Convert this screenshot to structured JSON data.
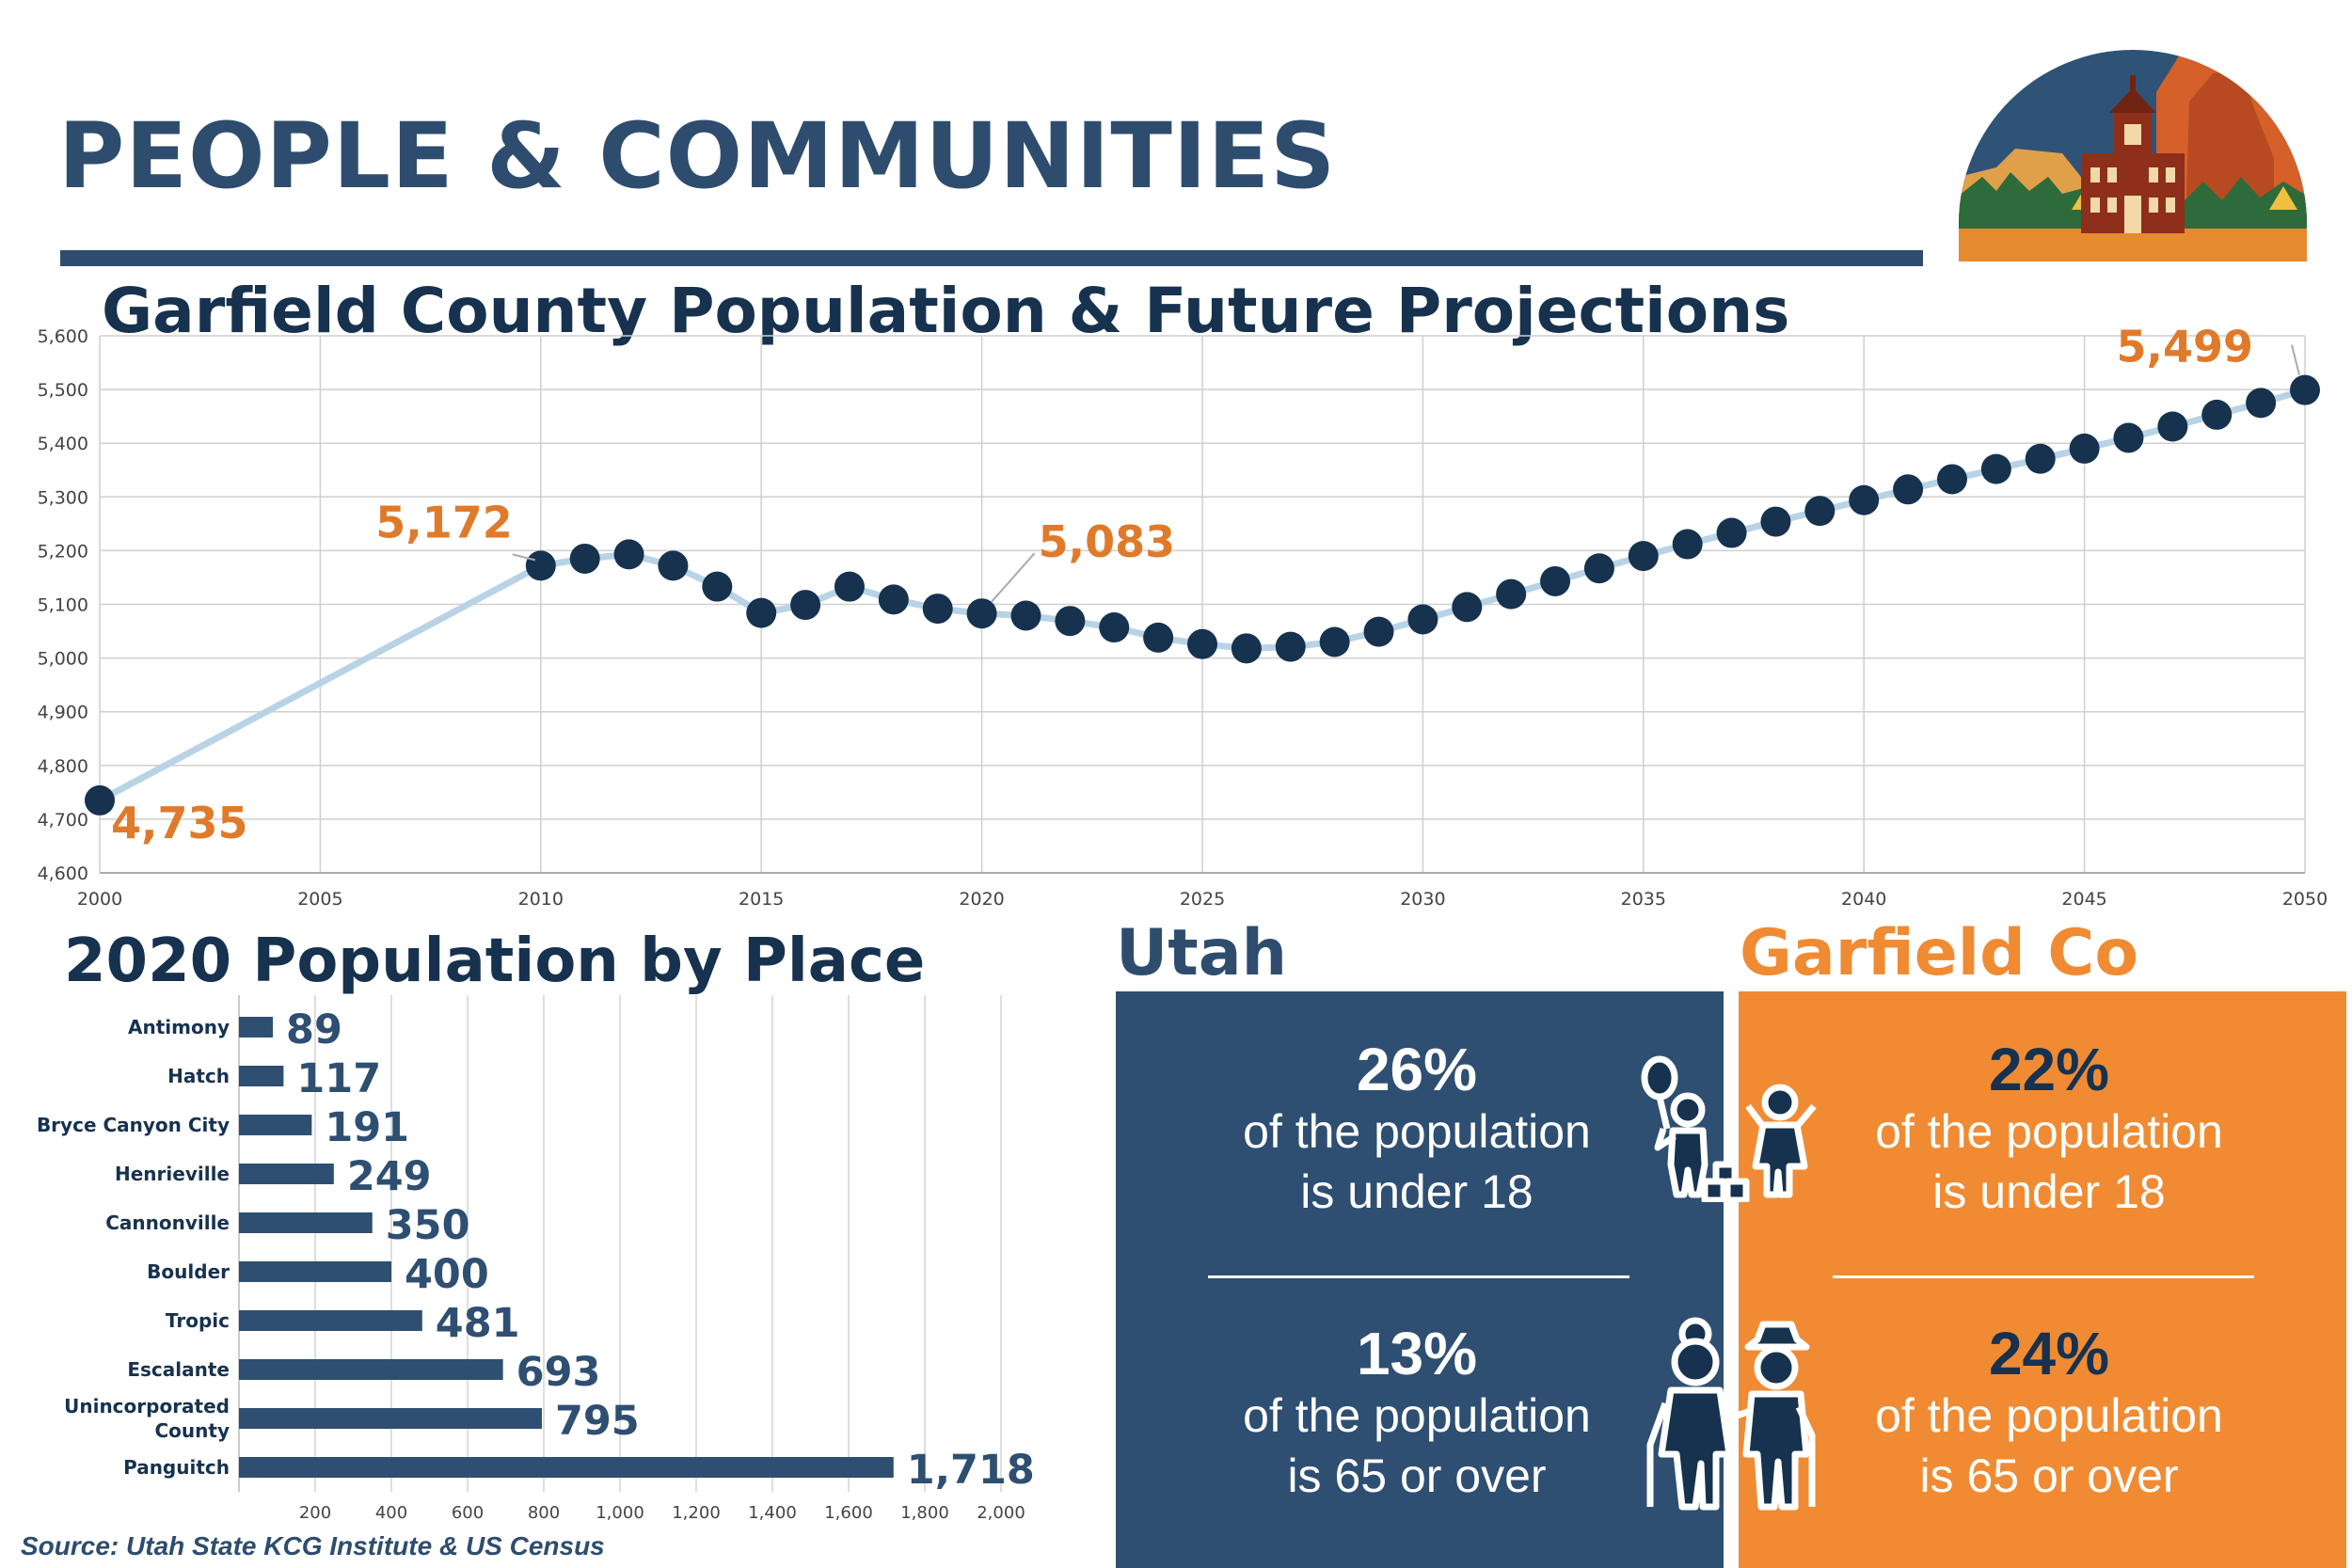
{
  "header": {
    "title": "PEOPLE & COMMUNITIES"
  },
  "colors": {
    "navy": "#16324f",
    "slate": "#2e4f72",
    "orange": "#f08b33",
    "label_orange": "#e07a2b",
    "line": "#b9d3e6"
  },
  "icons": {
    "logo": "courthouse-and-red-cliffs-illustration",
    "children": "children-playing-icon",
    "seniors": "elderly-couple-icon"
  },
  "chart_data": [
    {
      "type": "line",
      "title": "Garfield County Population & Future Projections",
      "xlim": [
        2000,
        2050
      ],
      "ylim": [
        4600,
        5600
      ],
      "x_ticks": [
        "2000",
        "2005",
        "2010",
        "2015",
        "2020",
        "2025",
        "2030",
        "2035",
        "2040",
        "2045",
        "2050"
      ],
      "y_ticks": [
        "4,600",
        "4,700",
        "4,800",
        "4,900",
        "5,000",
        "5,100",
        "5,200",
        "5,300",
        "5,400",
        "5,500",
        "5,600"
      ],
      "grid": true,
      "series": [
        {
          "points": [
            [
              2000,
              4735
            ],
            [
              2010,
              5172
            ],
            [
              2011,
              5185
            ],
            [
              2012,
              5193
            ],
            [
              2013,
              5172
            ],
            [
              2014,
              5133
            ],
            [
              2015,
              5084
            ],
            [
              2016,
              5099
            ],
            [
              2017,
              5133
            ],
            [
              2018,
              5109
            ],
            [
              2019,
              5092
            ],
            [
              2020,
              5083
            ],
            [
              2021,
              5079
            ],
            [
              2022,
              5069
            ],
            [
              2023,
              5057
            ],
            [
              2024,
              5038
            ],
            [
              2025,
              5026
            ],
            [
              2026,
              5018
            ],
            [
              2027,
              5021
            ],
            [
              2028,
              5030
            ],
            [
              2029,
              5049
            ],
            [
              2030,
              5072
            ],
            [
              2031,
              5095
            ],
            [
              2032,
              5119
            ],
            [
              2033,
              5143
            ],
            [
              2034,
              5167
            ],
            [
              2035,
              5190
            ],
            [
              2036,
              5212
            ],
            [
              2037,
              5233
            ],
            [
              2038,
              5254
            ],
            [
              2039,
              5274
            ],
            [
              2040,
              5294
            ],
            [
              2041,
              5314
            ],
            [
              2042,
              5333
            ],
            [
              2043,
              5352
            ],
            [
              2044,
              5371
            ],
            [
              2045,
              5390
            ],
            [
              2046,
              5410
            ],
            [
              2047,
              5431
            ],
            [
              2048,
              5453
            ],
            [
              2049,
              5475
            ],
            [
              2050,
              5499
            ]
          ]
        }
      ],
      "annotations": [
        {
          "x": 2000,
          "y": 4735,
          "label": "4,735"
        },
        {
          "x": 2010,
          "y": 5172,
          "label": "5,172"
        },
        {
          "x": 2020,
          "y": 5083,
          "label": "5,083"
        },
        {
          "x": 2050,
          "y": 5499,
          "label": "5,499"
        }
      ]
    },
    {
      "type": "bar",
      "orientation": "horizontal",
      "title": "2020 Population by Place",
      "categories": [
        "Antimony",
        "Hatch",
        "Bryce Canyon City",
        "Henrieville",
        "Cannonville",
        "Boulder",
        "Tropic",
        "Escalante",
        "Unincorporated County",
        "Panguitch"
      ],
      "values": [
        89,
        117,
        191,
        249,
        350,
        400,
        481,
        693,
        795,
        1718
      ],
      "value_labels": [
        "89",
        "117",
        "191",
        "249",
        "350",
        "400",
        "481",
        "693",
        "795",
        "1,718"
      ],
      "xlim": [
        0,
        2000
      ],
      "x_ticks": [
        "200",
        "400",
        "600",
        "800",
        "1,000",
        "1,200",
        "1,400",
        "1,600",
        "1,800",
        "2,000"
      ],
      "grid": true
    }
  ],
  "comparison": {
    "utah": {
      "title": "Utah",
      "under18": {
        "pct": "26%",
        "line1": "of the population",
        "line2": "is under 18"
      },
      "over65": {
        "pct": "13%",
        "line1": "of the population",
        "line2": "is 65 or over"
      }
    },
    "garfield": {
      "title": "Garfield Co",
      "under18": {
        "pct": "22%",
        "line1": "of the population",
        "line2": "is under 18"
      },
      "over65": {
        "pct": "24%",
        "line1": "of the population",
        "line2": "is 65 or over"
      }
    }
  },
  "source": "Source: Utah State KCG Institute & US Census"
}
